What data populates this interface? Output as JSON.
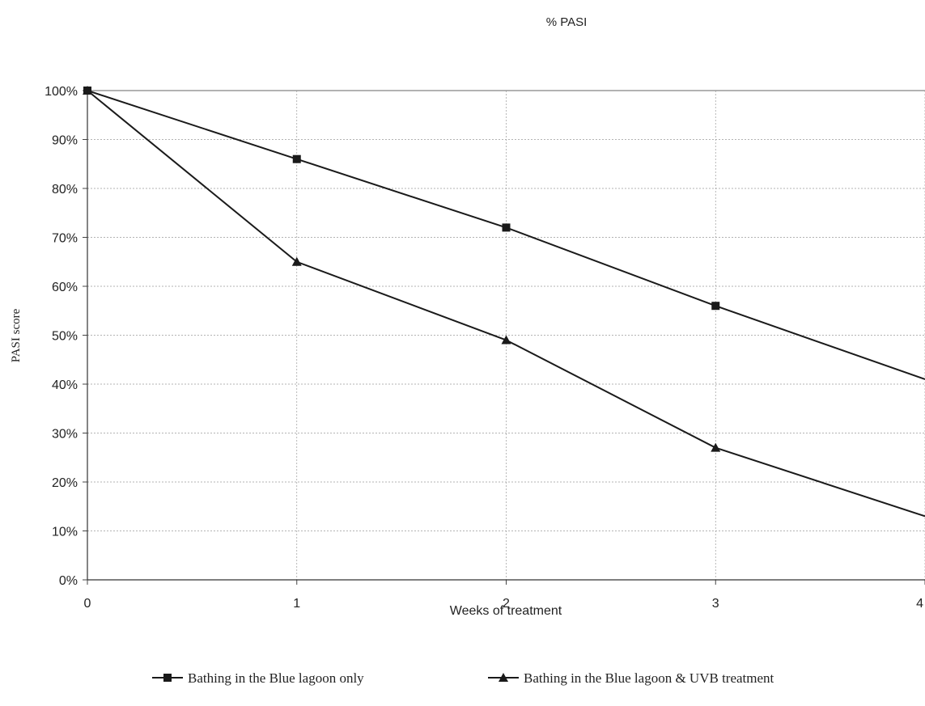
{
  "chart_data": {
    "type": "line",
    "title": "% PASI",
    "xlabel": "Weeks of treatment",
    "ylabel": "PASI score",
    "x": [
      0,
      1,
      2,
      3,
      4
    ],
    "x_ticks": [
      "0",
      "1",
      "2",
      "3",
      "4"
    ],
    "y_ticks": [
      "0%",
      "10%",
      "20%",
      "30%",
      "40%",
      "50%",
      "60%",
      "70%",
      "80%",
      "90%",
      "100%"
    ],
    "xlim": [
      0,
      4
    ],
    "ylim": [
      0,
      100
    ],
    "grid": true,
    "legend_position": "bottom",
    "series": [
      {
        "name": "Bathing in the Blue lagoon only",
        "marker": "square",
        "values": [
          100,
          86,
          72,
          56,
          41
        ]
      },
      {
        "name": "Bathing in the Blue lagoon & UVB treatment",
        "marker": "triangle",
        "values": [
          100,
          65,
          49,
          27,
          13
        ]
      }
    ]
  }
}
